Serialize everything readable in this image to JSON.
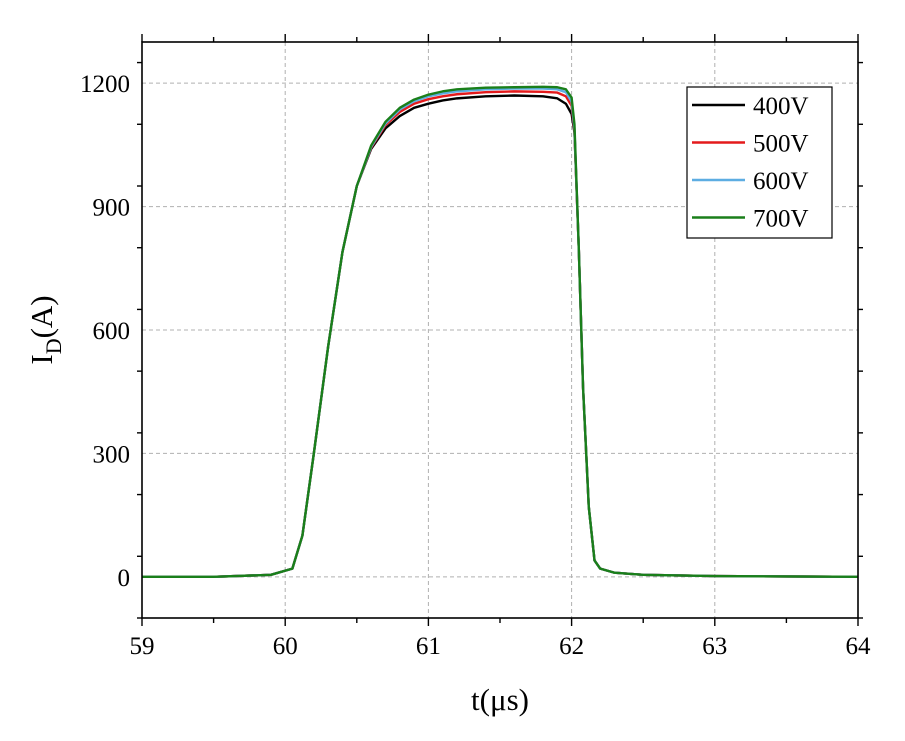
{
  "chart_data": {
    "type": "line",
    "title": "",
    "xlabel": "t(μs)",
    "ylabel_main": "I",
    "ylabel_sub": "D",
    "ylabel_tail": "(A)",
    "xlim": [
      59,
      64
    ],
    "ylim": [
      -100,
      1300
    ],
    "xticks": [
      59,
      60,
      61,
      62,
      63,
      64
    ],
    "yticks": [
      0,
      300,
      600,
      900,
      1200
    ],
    "grid": true,
    "legend_position": "top-right",
    "series": [
      {
        "name": "400V",
        "color": "#000000",
        "x": [
          59,
          59.5,
          59.9,
          60.05,
          60.12,
          60.2,
          60.3,
          60.4,
          60.5,
          60.6,
          60.7,
          60.8,
          60.9,
          61.0,
          61.1,
          61.2,
          61.4,
          61.6,
          61.8,
          61.9,
          61.96,
          62.0,
          62.02,
          62.05,
          62.08,
          62.12,
          62.16,
          62.2,
          62.3,
          62.5,
          63.0,
          64
        ],
        "y": [
          0,
          0,
          5,
          20,
          100,
          300,
          560,
          790,
          950,
          1040,
          1090,
          1120,
          1140,
          1150,
          1158,
          1163,
          1168,
          1170,
          1168,
          1163,
          1150,
          1125,
          1080,
          800,
          460,
          170,
          40,
          20,
          10,
          5,
          2,
          0
        ]
      },
      {
        "name": "500V",
        "color": "#e41a1c",
        "x": [
          59,
          59.5,
          59.9,
          60.05,
          60.12,
          60.2,
          60.3,
          60.4,
          60.5,
          60.6,
          60.7,
          60.8,
          60.9,
          61.0,
          61.1,
          61.2,
          61.4,
          61.6,
          61.8,
          61.9,
          61.96,
          62.0,
          62.02,
          62.05,
          62.08,
          62.12,
          62.16,
          62.2,
          62.3,
          62.5,
          63.0,
          64
        ],
        "y": [
          0,
          0,
          5,
          20,
          100,
          300,
          560,
          790,
          950,
          1043,
          1098,
          1130,
          1150,
          1161,
          1168,
          1173,
          1178,
          1180,
          1179,
          1177,
          1168,
          1145,
          1085,
          800,
          460,
          170,
          40,
          20,
          10,
          5,
          2,
          0
        ]
      },
      {
        "name": "600V",
        "color": "#5dade2",
        "x": [
          59,
          59.5,
          59.9,
          60.05,
          60.12,
          60.2,
          60.3,
          60.4,
          60.5,
          60.6,
          60.7,
          60.8,
          60.9,
          61.0,
          61.1,
          61.2,
          61.4,
          61.6,
          61.8,
          61.9,
          61.96,
          62.0,
          62.02,
          62.05,
          62.08,
          62.12,
          62.16,
          62.2,
          62.3,
          62.5,
          63.0,
          64
        ],
        "y": [
          0,
          0,
          5,
          20,
          100,
          300,
          560,
          790,
          950,
          1045,
          1102,
          1136,
          1156,
          1168,
          1175,
          1180,
          1185,
          1187,
          1187,
          1185,
          1178,
          1155,
          1090,
          800,
          460,
          170,
          40,
          20,
          10,
          5,
          2,
          0
        ]
      },
      {
        "name": "700V",
        "color": "#1a7f1a",
        "x": [
          59,
          59.5,
          59.9,
          60.05,
          60.12,
          60.2,
          60.3,
          60.4,
          60.5,
          60.6,
          60.7,
          60.8,
          60.9,
          61.0,
          61.1,
          61.2,
          61.4,
          61.6,
          61.8,
          61.9,
          61.96,
          62.0,
          62.02,
          62.05,
          62.08,
          62.12,
          62.16,
          62.2,
          62.3,
          62.5,
          63.0,
          64
        ],
        "y": [
          0,
          0,
          5,
          20,
          100,
          300,
          560,
          790,
          950,
          1048,
          1106,
          1140,
          1160,
          1172,
          1180,
          1185,
          1189,
          1190,
          1191,
          1190,
          1185,
          1165,
          1100,
          800,
          460,
          170,
          40,
          20,
          10,
          5,
          2,
          0
        ]
      }
    ]
  }
}
